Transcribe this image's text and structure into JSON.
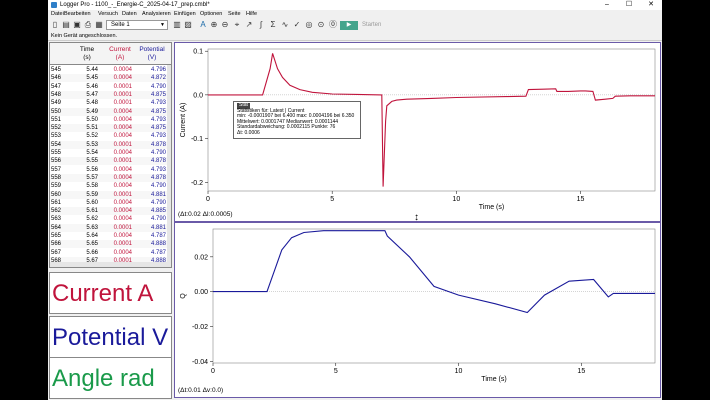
{
  "window": {
    "title": "Logger Pro - 1100_-_Energie-C_2025-04-17_prep.cmbl*",
    "controls": [
      "–",
      "☐",
      "✕"
    ]
  },
  "menu": [
    "Datei",
    "Bearbeiten",
    "Versuch",
    "Daten",
    "Analysieren",
    "Einfügen",
    "Optionen",
    "Seite",
    "Hilfe"
  ],
  "toolbar": {
    "page": "Seite 1",
    "start_label": "Starten",
    "icons": [
      "new-file-icon",
      "open-icon",
      "save-icon",
      "print-icon",
      "page-nav-icon",
      "table-icon",
      "graph-icon",
      "autoscale-icon",
      "zoom-in-icon",
      "zoom-out-icon",
      "examine-icon",
      "tangent-icon",
      "integral-icon",
      "statistics-icon",
      "curve-fit-icon",
      "model-icon",
      "meter-icon",
      "data-collection-icon",
      "zero-icon"
    ]
  },
  "status": "Kein Gerät angeschlossen.",
  "table": {
    "headers": {
      "time": "Time",
      "time_unit": "(s)",
      "current": "Current",
      "current_unit": "(A)",
      "potential": "Potential",
      "potential_unit": "(V)"
    },
    "rows": [
      [
        "545",
        "5.44",
        "0.0004",
        "4.796"
      ],
      [
        "546",
        "5.45",
        "0.0004",
        "4.872"
      ],
      [
        "547",
        "5.46",
        "0.0001",
        "4.790"
      ],
      [
        "548",
        "5.47",
        "0.0001",
        "4.875"
      ],
      [
        "549",
        "5.48",
        "0.0001",
        "4.793"
      ],
      [
        "550",
        "5.49",
        "0.0004",
        "4.875"
      ],
      [
        "551",
        "5.50",
        "0.0004",
        "4.793"
      ],
      [
        "552",
        "5.51",
        "0.0004",
        "4.875"
      ],
      [
        "553",
        "5.52",
        "0.0004",
        "4.793"
      ],
      [
        "554",
        "5.53",
        "0.0001",
        "4.878"
      ],
      [
        "555",
        "5.54",
        "0.0004",
        "4.790"
      ],
      [
        "556",
        "5.55",
        "0.0001",
        "4.878"
      ],
      [
        "557",
        "5.56",
        "0.0004",
        "4.793"
      ],
      [
        "558",
        "5.57",
        "0.0004",
        "4.878"
      ],
      [
        "559",
        "5.58",
        "0.0004",
        "4.790"
      ],
      [
        "560",
        "5.59",
        "0.0001",
        "4.881"
      ],
      [
        "561",
        "5.60",
        "0.0004",
        "4.790"
      ],
      [
        "562",
        "5.61",
        "0.0004",
        "4.885"
      ],
      [
        "563",
        "5.62",
        "0.0004",
        "4.790"
      ],
      [
        "564",
        "5.63",
        "0.0001",
        "4.881"
      ],
      [
        "565",
        "5.64",
        "0.0004",
        "4.787"
      ],
      [
        "566",
        "5.65",
        "0.0001",
        "4.888"
      ],
      [
        "567",
        "5.66",
        "0.0004",
        "4.787"
      ],
      [
        "568",
        "5.67",
        "0.0001",
        "4.888"
      ]
    ]
  },
  "meters": [
    {
      "label": "Current A",
      "color": "#c0143c"
    },
    {
      "label": "Potential V",
      "color": "#1a1a9a"
    },
    {
      "label": "Angle rad",
      "color": "#1a9a4a"
    }
  ],
  "colors": {
    "current": "#c0143c",
    "potential": "#1a1a9a",
    "angle": "#1a9a4a",
    "graph_border": "#6a5aa8"
  },
  "graph_top": {
    "readout": "(Δt:0.02 ΔI:0.0005)",
    "stats": {
      "title": "Stat",
      "lines": [
        "Statistiken für: Latest | Current",
        "min: -0.0001907 bei 6.400 max: 0.0004196 bei 6.350",
        "Mittelwert: 0.0001747 Medianwert: 0.0001144",
        "Standardabweichung: 0.0002115 Punkte: 76",
        "Δt: 0.0006"
      ]
    }
  },
  "graph_bottom": {
    "readout": "(Δt:0.01 Δv:0.0)"
  },
  "chart_data": [
    {
      "type": "line",
      "xlabel": "Time (s)",
      "ylabel": "Current (A)",
      "xlim": [
        0,
        18
      ],
      "ylim": [
        -0.22,
        0.105
      ],
      "xticks": [
        0,
        5,
        10,
        15
      ],
      "yticks": [
        0.1,
        0.0,
        -0.1,
        -0.2
      ],
      "ytick_labels": [
        "0.1",
        "0.0",
        "-0.1",
        "-0.2"
      ],
      "series": [
        {
          "x": [
            0,
            2.2,
            2.5,
            2.6,
            2.8,
            3.0,
            3.3,
            3.7,
            4.2,
            5.0,
            6.0,
            7.0,
            7.05,
            7.15,
            7.2,
            7.4,
            7.6,
            8.0,
            9.0,
            10.0,
            12.0,
            12.8,
            12.9,
            13.5,
            14.0,
            14.05,
            14.5,
            15.0,
            15.2,
            15.5,
            15.6,
            16.0,
            16.3,
            16.4,
            17.0,
            18.0
          ],
          "y": [
            0.0,
            0.0,
            0.06,
            0.095,
            0.06,
            0.04,
            0.022,
            0.012,
            0.006,
            0.002,
            0.001,
            0.0,
            -0.21,
            -0.06,
            -0.025,
            -0.015,
            -0.012,
            -0.01,
            -0.008,
            -0.006,
            -0.004,
            -0.003,
            0.012,
            0.013,
            0.014,
            0.008,
            0.008,
            0.009,
            0.009,
            0.008,
            -0.012,
            -0.01,
            -0.008,
            -0.003,
            -0.002,
            -0.002
          ]
        }
      ]
    },
    {
      "type": "line",
      "xlabel": "Time (s)",
      "ylabel": "Q",
      "xlim": [
        0,
        18
      ],
      "ylim": [
        -0.041,
        0.036
      ],
      "xticks": [
        0,
        5,
        10,
        15
      ],
      "yticks": [
        0.02,
        0.0,
        -0.02,
        -0.04
      ],
      "ytick_labels": [
        "0.02",
        "0.00",
        "-0.02",
        "-0.04"
      ],
      "series": [
        {
          "x": [
            0,
            2.2,
            2.5,
            2.8,
            3.2,
            3.7,
            4.5,
            5.5,
            7.0,
            7.1,
            8.0,
            9.0,
            10.0,
            11.5,
            12.8,
            13.5,
            14.5,
            15.5,
            16.1,
            16.3,
            16.5,
            17.0,
            18.0
          ],
          "y": [
            0.0,
            0.0,
            0.012,
            0.024,
            0.031,
            0.034,
            0.035,
            0.035,
            0.035,
            0.032,
            0.02,
            0.003,
            -0.002,
            -0.007,
            -0.012,
            -0.002,
            0.006,
            0.007,
            -0.003,
            -0.001,
            -0.001,
            -0.001,
            -0.001
          ]
        }
      ]
    }
  ]
}
